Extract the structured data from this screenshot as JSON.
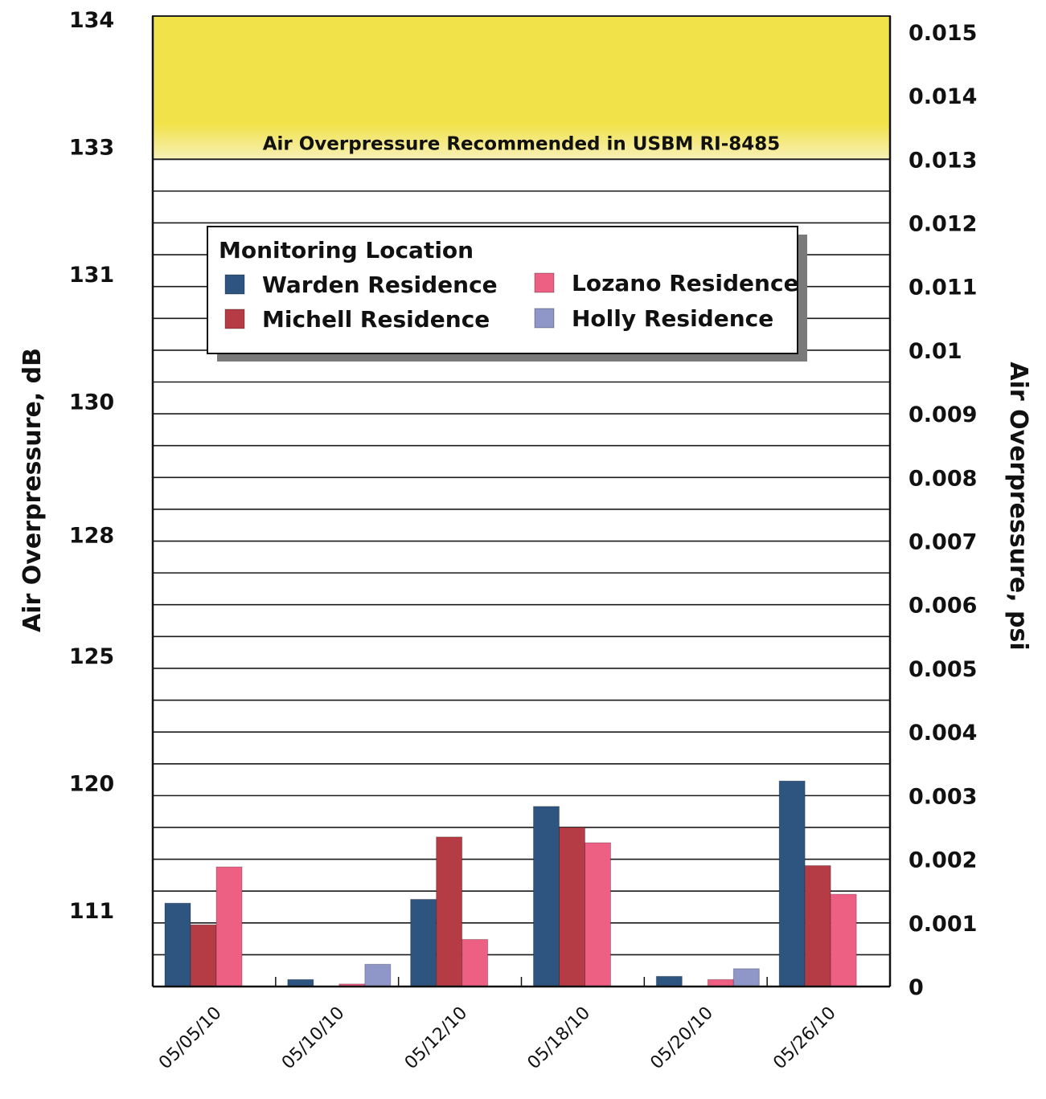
{
  "chart_data": {
    "type": "bar",
    "title": "",
    "categories": [
      "05/05/10",
      "05/10/10",
      "05/12/10",
      "05/18/10",
      "05/20/10",
      "05/26/10"
    ],
    "series": [
      {
        "name": "Warden Residence",
        "color": "#2e5480",
        "values": [
          0.00131,
          0.00011,
          0.00137,
          0.00283,
          0.00016,
          0.00323
        ]
      },
      {
        "name": "Michell Residence",
        "color": "#b53b45",
        "values": [
          0.00097,
          0,
          0.00235,
          0.0025,
          0,
          0.0019
        ]
      },
      {
        "name": "Lozano Residence",
        "color": "#ee5f84",
        "values": [
          0.00188,
          4e-05,
          0.00074,
          0.00226,
          0.00011,
          0.00145
        ]
      },
      {
        "name": "Holly Residence",
        "color": "#8f96c8",
        "values": [
          0,
          0.00035,
          0,
          0,
          0.00028,
          0
        ]
      }
    ],
    "y_left": {
      "label": "Air Overpressure, dB",
      "ticks": [
        {
          "label": "134",
          "psi": 0.0152
        },
        {
          "label": "133",
          "psi": 0.0132
        },
        {
          "label": "131",
          "psi": 0.0112
        },
        {
          "label": "130",
          "psi": 0.0092
        },
        {
          "label": "128",
          "psi": 0.0071
        },
        {
          "label": "125",
          "psi": 0.0052
        },
        {
          "label": "120",
          "psi": 0.0032
        },
        {
          "label": "111",
          "psi": 0.0012
        }
      ]
    },
    "y_right": {
      "label": "Air Overpressure, psi",
      "ylim": [
        0,
        0.015
      ],
      "ticks": [
        "0",
        "0.001",
        "0.002",
        "0.003",
        "0.004",
        "0.005",
        "0.006",
        "0.007",
        "0.008",
        "0.009",
        "0.01",
        "0.011",
        "0.012",
        "0.013",
        "0.014",
        "0.015"
      ]
    },
    "threshold_band": {
      "label": "Air Overpressure Recommended in USBM RI-8485",
      "from": 0.013,
      "to": 0.015,
      "color": "#f1e24a"
    },
    "legend": {
      "title": "Monitoring Location",
      "placement": "upper-left"
    },
    "grid": true
  }
}
